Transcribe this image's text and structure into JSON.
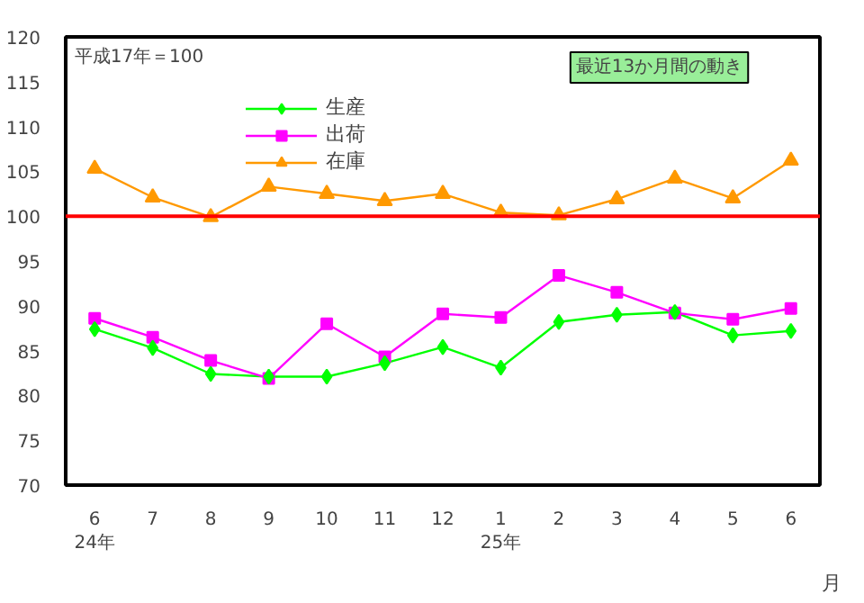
{
  "chart_data": {
    "type": "line",
    "xlabel": "月",
    "categories": [
      "6\n24年",
      "7",
      "8",
      "9",
      "10",
      "11",
      "12",
      "1\n25年",
      "2",
      "3",
      "4",
      "5",
      "6"
    ],
    "series": [
      {
        "name": "生産",
        "color": "#00ff00",
        "marker": "diamond",
        "values": [
          87.4,
          85.3,
          82.4,
          82.1,
          82.1,
          83.6,
          85.4,
          83.1,
          88.2,
          89.0,
          89.3,
          86.7,
          87.2
        ]
      },
      {
        "name": "出荷",
        "color": "#ff00ff",
        "marker": "square",
        "values": [
          88.6,
          86.5,
          83.9,
          81.9,
          88.0,
          84.3,
          89.1,
          88.7,
          93.4,
          91.5,
          89.2,
          88.5,
          89.7
        ]
      },
      {
        "name": "在庫",
        "color": "#ff9900",
        "marker": "triangle",
        "values": [
          105.3,
          102.1,
          99.9,
          103.3,
          102.5,
          101.7,
          102.5,
          100.4,
          100.1,
          101.9,
          104.2,
          102.0,
          106.2
        ]
      }
    ],
    "ylim": [
      70,
      120
    ],
    "yticks": [
      70,
      75,
      80,
      85,
      90,
      95,
      100,
      105,
      110,
      115,
      120
    ],
    "ref_lines": [
      {
        "axis": "y",
        "value": 100,
        "color": "#ff0000"
      }
    ],
    "annotations": [
      "平成17年＝100",
      "最近13か月間の動き"
    ],
    "grid": false,
    "legend": "top left"
  }
}
